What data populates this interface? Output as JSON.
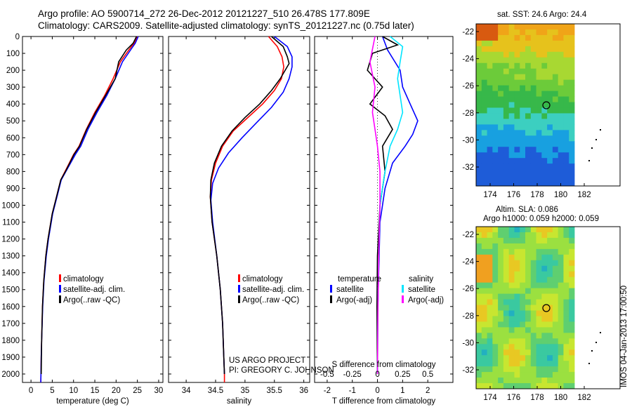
{
  "header": {
    "title_line1": "Argo profile: AO 5900714_272 26-Dec-2012 20121227_510 26.478S 177.809E",
    "title_line2": "Climatology: CARS2009. Satellite-adjusted climatology: synTS_20121227.nc (0.75d later)"
  },
  "colors": {
    "climatology": "#ff0000",
    "satellite": "#0000ff",
    "argo": "#000000",
    "sal_satellite": "#00e5ff",
    "sal_argo": "#ff00ff"
  },
  "chart_data": [
    {
      "type": "line",
      "id": "temperature",
      "xlabel": "temperature (deg C)",
      "xlim": [
        -2,
        31
      ],
      "ylim": [
        2050,
        0
      ],
      "xticks": [
        0,
        5,
        10,
        15,
        20,
        25,
        30
      ],
      "yticks": [
        0,
        100,
        200,
        300,
        400,
        500,
        600,
        700,
        800,
        900,
        1000,
        1100,
        1200,
        1300,
        1400,
        1500,
        1600,
        1700,
        1800,
        1900,
        2000
      ],
      "legend": [
        "climatology",
        "satellite-adj. clim.",
        "Argo(..raw -QC)"
      ],
      "series": [
        {
          "name": "climatology",
          "color": "#ff0000",
          "x": [
            25,
            24.2,
            23,
            21,
            19.3,
            17.3,
            15,
            13,
            11.3,
            10,
            9,
            8,
            7,
            6,
            5,
            4,
            3.5,
            3,
            2.7,
            2.5,
            2.4,
            2.3
          ],
          "y": [
            0,
            40,
            80,
            150,
            250,
            350,
            450,
            550,
            650,
            700,
            750,
            800,
            850,
            950,
            1050,
            1200,
            1300,
            1450,
            1600,
            1800,
            1900,
            2050
          ]
        },
        {
          "name": "satellite-adj. clim.",
          "color": "#0000ff",
          "x": [
            25.2,
            24.5,
            23.4,
            21.5,
            19.8,
            17.8,
            15.5,
            13.4,
            11.7,
            10.4,
            9.3,
            8.2,
            7.1,
            6.1,
            5.1,
            4.1,
            3.6,
            3.05,
            2.75,
            2.5,
            2.4,
            2.3
          ],
          "y": [
            0,
            40,
            80,
            150,
            250,
            350,
            450,
            550,
            650,
            700,
            750,
            800,
            850,
            950,
            1050,
            1200,
            1300,
            1450,
            1600,
            1800,
            1900,
            2050
          ]
        },
        {
          "name": "Argo(..raw -QC)",
          "color": "#000000",
          "x": [
            24.8,
            24,
            22.4,
            20.6,
            19.8,
            17.5,
            15.2,
            13.1,
            11.4,
            10.1,
            9.1,
            8.1,
            7,
            6,
            5,
            4,
            3.5,
            3,
            2.7,
            2.5,
            2.4
          ],
          "y": [
            0,
            40,
            80,
            150,
            250,
            350,
            450,
            550,
            650,
            700,
            750,
            800,
            850,
            950,
            1050,
            1200,
            1300,
            1450,
            1600,
            1800,
            2000
          ]
        }
      ]
    },
    {
      "type": "line",
      "id": "salinity",
      "xlabel": "salinity",
      "xlim": [
        33.7,
        36.1
      ],
      "ylim": [
        2050,
        0
      ],
      "xticks": [
        34,
        34.5,
        35,
        35.5,
        36
      ],
      "legend": [
        "climatology",
        "satellite-adj. clim.",
        "Argo(..raw -QC)"
      ],
      "annotation_line1": "US ARGO PROJECT",
      "annotation_line2": "PI: GREGORY C. JOHNSON",
      "series": [
        {
          "name": "climatology",
          "color": "#ff0000",
          "x": [
            35.4,
            35.55,
            35.63,
            35.66,
            35.62,
            35.5,
            35.3,
            35.05,
            34.8,
            34.62,
            34.5,
            34.43,
            34.41,
            34.44,
            34.52,
            34.58,
            34.62,
            34.64,
            34.65,
            34.65
          ],
          "y": [
            0,
            60,
            120,
            180,
            250,
            320,
            400,
            480,
            560,
            650,
            750,
            850,
            950,
            1100,
            1300,
            1500,
            1700,
            1900,
            2000,
            2050
          ]
        },
        {
          "name": "satellite-adj. clim.",
          "color": "#0000ff",
          "x": [
            35.5,
            35.72,
            35.8,
            35.8,
            35.75,
            35.65,
            35.45,
            35.2,
            34.95,
            34.72,
            34.55,
            34.45,
            34.42,
            34.45,
            34.52,
            34.58,
            34.62,
            34.64,
            34.65
          ],
          "y": [
            0,
            60,
            120,
            180,
            250,
            330,
            420,
            510,
            600,
            690,
            780,
            870,
            970,
            1100,
            1300,
            1500,
            1700,
            1900,
            2000
          ]
        },
        {
          "name": "Argo(..raw -QC)",
          "color": "#000000",
          "x": [
            35.45,
            35.65,
            35.72,
            35.75,
            35.6,
            35.45,
            35.25,
            35.0,
            34.78,
            34.6,
            34.48,
            34.42,
            34.41,
            34.44,
            34.52,
            34.58,
            34.62,
            34.64,
            34.65
          ],
          "y": [
            0,
            60,
            120,
            160,
            250,
            320,
            400,
            480,
            560,
            650,
            750,
            850,
            950,
            1100,
            1300,
            1500,
            1700,
            1900,
            2000
          ]
        }
      ]
    },
    {
      "type": "line",
      "id": "difference",
      "xlabel": "T difference from climatology",
      "xlabel_top": "S difference from climatology",
      "xlim": [
        -2.5,
        3
      ],
      "ylim": [
        2050,
        0
      ],
      "xticks": [
        -2,
        -1,
        0,
        1,
        2
      ],
      "xticks_top": [
        "-0.5",
        "-0.25",
        "0",
        "0.25",
        "0.5"
      ],
      "legend_temp_title": "temperature",
      "legend_sal_title": "salinity",
      "legend_satellite": "satellite",
      "legend_argo": "Argo(-adj)",
      "series": [
        {
          "name": "temperature satellite",
          "color": "#0000ff",
          "x": [
            0.2,
            0.4,
            0.9,
            1.0,
            1.3,
            1.6,
            1.4,
            1.1,
            0.6,
            0.3,
            0.1,
            0.05,
            0.0,
            0.0
          ],
          "y": [
            0,
            80,
            200,
            300,
            400,
            500,
            580,
            650,
            750,
            900,
            1100,
            1400,
            1700,
            2000
          ]
        },
        {
          "name": "temperature Argo(-adj)",
          "color": "#000000",
          "x": [
            0.2,
            0.8,
            -0.2,
            -0.4,
            0.2,
            -0.3,
            0.3,
            0.6,
            0.2,
            0.3,
            0.1,
            0.0,
            -0.02,
            0.0
          ],
          "y": [
            0,
            50,
            100,
            200,
            300,
            400,
            470,
            550,
            650,
            800,
            1000,
            1300,
            1600,
            2000
          ]
        },
        {
          "name": "salinity satellite",
          "color": "#00e5ff",
          "x": [
            0.5,
            1.0,
            0.9,
            0.8,
            0.9,
            1.0,
            0.8,
            0.5,
            0.3,
            0.1,
            0.05,
            0.02,
            0.0
          ],
          "y": [
            0,
            60,
            150,
            250,
            350,
            450,
            550,
            650,
            800,
            1000,
            1300,
            1600,
            2000
          ]
        },
        {
          "name": "salinity Argo(-adj)",
          "color": "#ff00ff",
          "x": [
            -0.1,
            -0.3,
            -0.1,
            -0.2,
            -0.1,
            0.0,
            0.1,
            0.1,
            0.05,
            0.02,
            0.0
          ],
          "y": [
            0,
            150,
            300,
            450,
            550,
            650,
            800,
            1000,
            1300,
            1600,
            2000
          ]
        }
      ]
    }
  ],
  "maps": {
    "sst_title": "sat. SST: 24.6 Argo: 24.4",
    "sla_title_line1": "Altim. SLA: 0.086",
    "sla_title_line2": "Argo h1000: 0.059 h2000: 0.059",
    "xticks": [
      "174",
      "176",
      "178",
      "180",
      "182"
    ],
    "yticks": [
      "-22",
      "-24",
      "-26",
      "-28",
      "-30",
      "-32"
    ],
    "sst_colors": [
      "#1e5cd8",
      "#18a0e0",
      "#3ccfc0",
      "#37b84a",
      "#6ccb3a",
      "#a8d832",
      "#e6c21c",
      "#f0a418",
      "#d85a10"
    ],
    "sla_colors": [
      "#22b0c0",
      "#3ac9a0",
      "#5fcf70",
      "#9be040",
      "#c8e630",
      "#e8c823",
      "#f0a020"
    ]
  },
  "side_stamp": "IMOS 04-Jan-2013 17:00:50"
}
